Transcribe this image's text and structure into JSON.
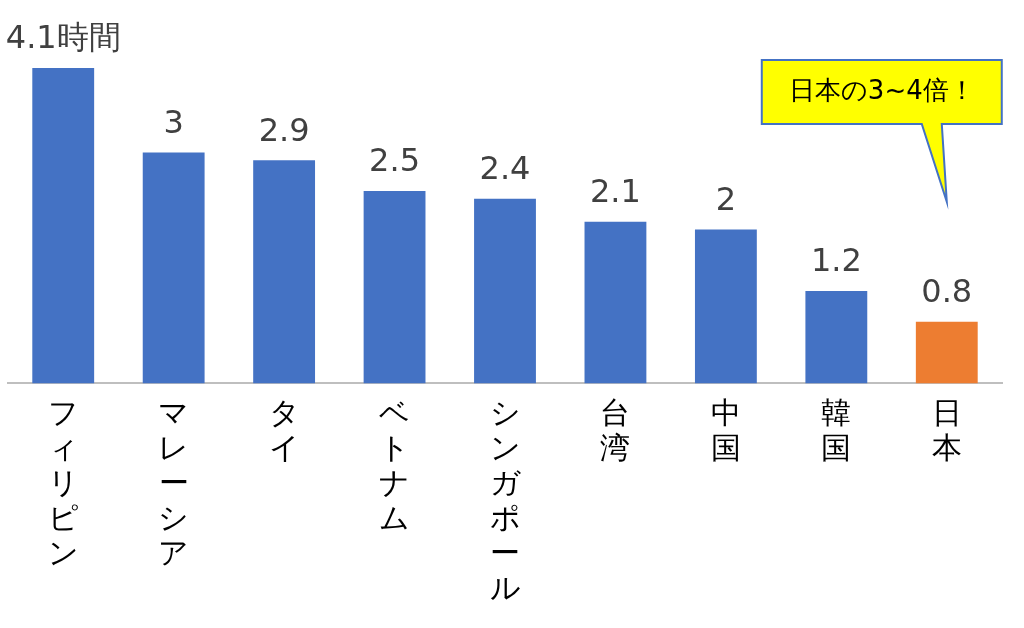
{
  "chart_data": {
    "type": "bar",
    "categories": [
      "フィリピン",
      "マレーシア",
      "タイ",
      "ベトナム",
      "シンガポール",
      "台湾",
      "中国",
      "韓国",
      "日本"
    ],
    "values": [
      4.1,
      3,
      2.9,
      2.5,
      2.4,
      2.1,
      2,
      1.2,
      0.8
    ],
    "colors": [
      "#4472c4",
      "#4472c4",
      "#4472c4",
      "#4472c4",
      "#4472c4",
      "#4472c4",
      "#4472c4",
      "#4472c4",
      "#ed7d31"
    ],
    "value_labels": [
      "4.1時間",
      "3",
      "2.9",
      "2.5",
      "2.4",
      "2.1",
      "2",
      "1.2",
      "0.8"
    ],
    "tick_labels": "x",
    "grid": false,
    "legend": false,
    "annotations": [
      "日本の3~4倍！"
    ]
  }
}
